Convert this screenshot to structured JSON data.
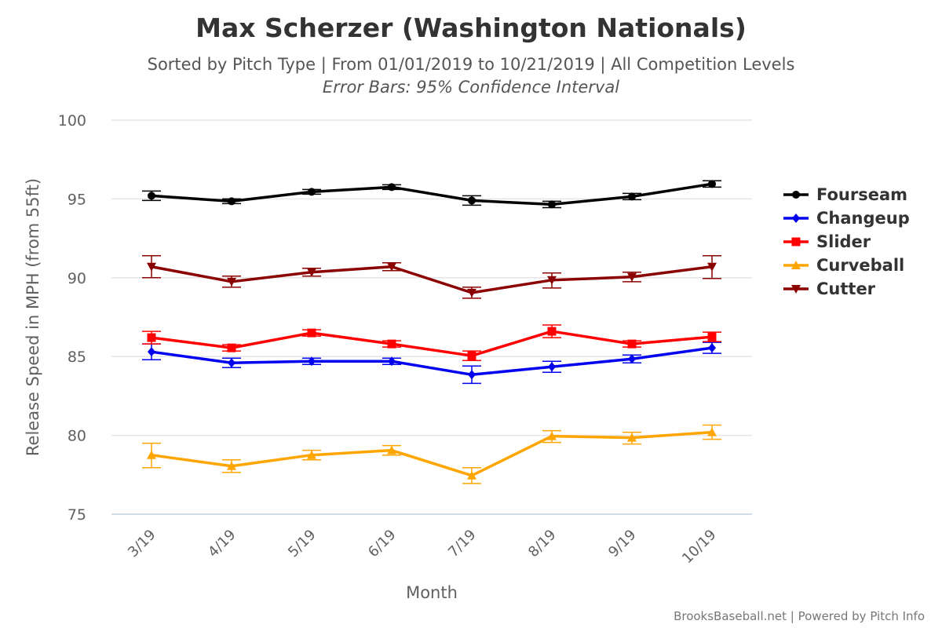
{
  "chart_data": {
    "type": "line",
    "title": "Max Scherzer (Washington Nationals)",
    "subtitle": "Sorted by Pitch Type | From 01/01/2019 to 10/21/2019 | All Competition Levels",
    "subtitle2": "Error Bars: 95% Confidence Interval",
    "xlabel": "Month",
    "ylabel": "Release Speed in MPH (from 55ft)",
    "categories": [
      "3/19",
      "4/19",
      "5/19",
      "6/19",
      "7/19",
      "8/19",
      "9/19",
      "10/19"
    ],
    "ylim": [
      75,
      100
    ],
    "yticks": [
      75,
      80,
      85,
      90,
      95,
      100
    ],
    "grid": true,
    "legend_position": "right",
    "series": [
      {
        "name": "Fourseam",
        "color": "#000000",
        "marker": "circle",
        "values": [
          95.2,
          94.85,
          95.45,
          95.75,
          94.9,
          94.65,
          95.15,
          95.95
        ],
        "err_low": [
          94.9,
          94.7,
          95.3,
          95.6,
          94.6,
          94.45,
          94.95,
          95.75
        ],
        "err_high": [
          95.5,
          95.0,
          95.6,
          95.9,
          95.2,
          94.85,
          95.35,
          96.15
        ]
      },
      {
        "name": "Changeup",
        "color": "#0000ee",
        "marker": "diamond",
        "values": [
          85.3,
          84.6,
          84.7,
          84.7,
          83.85,
          84.35,
          84.85,
          85.55
        ],
        "err_low": [
          84.8,
          84.3,
          84.5,
          84.5,
          83.3,
          84.0,
          84.6,
          85.2
        ],
        "err_high": [
          85.8,
          84.9,
          84.9,
          84.9,
          84.4,
          84.7,
          85.1,
          85.9
        ]
      },
      {
        "name": "Slider",
        "color": "#ff0000",
        "marker": "square",
        "values": [
          86.2,
          85.55,
          86.5,
          85.8,
          85.05,
          86.6,
          85.8,
          86.25
        ],
        "err_low": [
          85.8,
          85.35,
          86.3,
          85.6,
          84.75,
          86.2,
          85.6,
          85.95
        ],
        "err_high": [
          86.6,
          85.75,
          86.7,
          86.0,
          85.35,
          87.0,
          86.0,
          86.55
        ]
      },
      {
        "name": "Curveball",
        "color": "#ffa500",
        "marker": "triangle",
        "values": [
          78.75,
          78.05,
          78.75,
          79.05,
          77.45,
          79.95,
          79.85,
          80.2
        ],
        "err_low": [
          77.95,
          77.65,
          78.45,
          78.75,
          76.95,
          79.55,
          79.45,
          79.75
        ],
        "err_high": [
          79.5,
          78.45,
          79.05,
          79.35,
          77.95,
          80.3,
          80.2,
          80.65
        ]
      },
      {
        "name": "Cutter",
        "color": "#8b0000",
        "marker": "triangle-down",
        "values": [
          90.7,
          89.75,
          90.35,
          90.7,
          89.05,
          89.85,
          90.05,
          90.7
        ],
        "err_low": [
          90.0,
          89.4,
          90.1,
          90.45,
          88.7,
          89.35,
          89.75,
          89.95
        ],
        "err_high": [
          91.4,
          90.1,
          90.6,
          90.95,
          89.4,
          90.3,
          90.35,
          91.4
        ]
      }
    ]
  },
  "credit": "BrooksBaseball.net | Powered by Pitch Info"
}
